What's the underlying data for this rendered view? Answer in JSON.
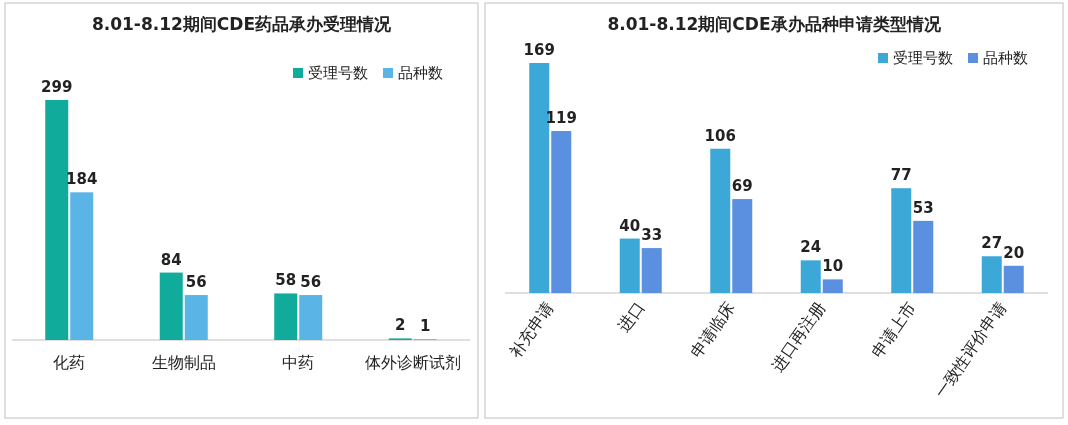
{
  "chart_data": [
    {
      "type": "bar",
      "title": "8.01-8.12期间CDE药品承办受理情况",
      "categories": [
        "化药",
        "生物制品",
        "中药",
        "体外诊断试剂"
      ],
      "series": [
        {
          "name": "受理号数",
          "color": "#11ab9b",
          "values": [
            299,
            84,
            58,
            2
          ]
        },
        {
          "name": "品种数",
          "color": "#5ab4e5",
          "values": [
            184,
            56,
            56,
            1
          ]
        }
      ],
      "data_labels": true,
      "legend": "top right"
    },
    {
      "type": "bar",
      "title": "8.01-8.12期间CDE承办品种申请类型情况",
      "categories": [
        "补充申请",
        "进口",
        "申请临床",
        "进口再注册",
        "申请上市",
        "一致性评价申请"
      ],
      "series": [
        {
          "name": "受理号数",
          "color": "#3ca8d8",
          "values": [
            169,
            40,
            106,
            24,
            77,
            27
          ]
        },
        {
          "name": "品种数",
          "color": "#5b8fe0",
          "values": [
            119,
            33,
            69,
            10,
            53,
            20
          ]
        }
      ],
      "data_labels": true,
      "legend": "top right"
    }
  ]
}
